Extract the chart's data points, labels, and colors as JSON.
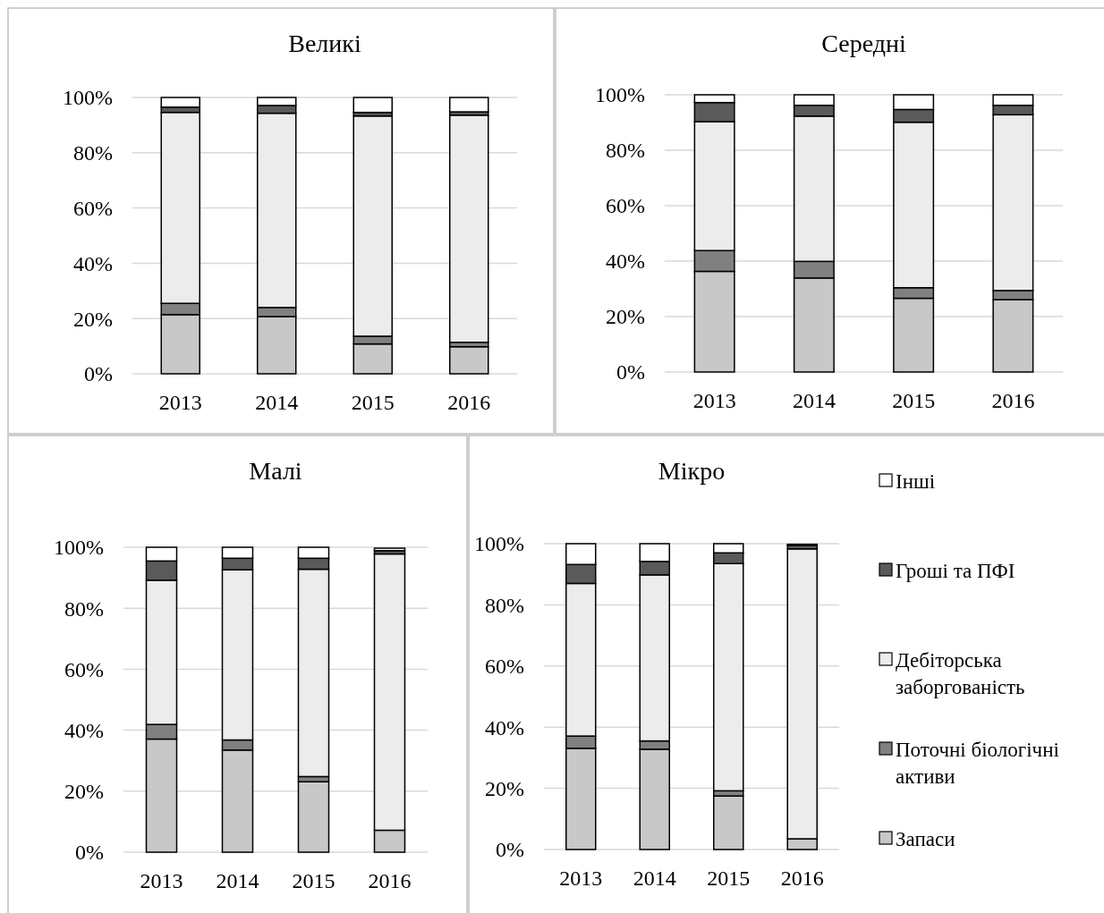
{
  "chart_data": [
    {
      "type": "bar",
      "title": "Великі",
      "categories": [
        "2013",
        "2014",
        "2015",
        "2016"
      ],
      "stacked": true,
      "ylim": [
        0,
        100
      ],
      "yticks": [
        {
          "value": 0,
          "label": "0%"
        },
        {
          "value": 20,
          "label": "20%"
        },
        {
          "value": 40,
          "label": "40%"
        },
        {
          "value": 60,
          "label": "60%"
        },
        {
          "value": 80,
          "label": "80%"
        },
        {
          "value": 100,
          "label": "100%"
        }
      ],
      "grid": "y",
      "legend": false,
      "series": [
        {
          "color": "#c8c8c8",
          "values": [
            21.4,
            20.7,
            10.8,
            9.8
          ]
        },
        {
          "color": "#808080",
          "values": [
            4.1,
            3.3,
            2.8,
            1.6
          ]
        },
        {
          "color": "#ececec",
          "values": [
            69.1,
            70.3,
            79.7,
            82.2
          ]
        },
        {
          "color": "#5a5a5a",
          "values": [
            1.9,
            2.8,
            1.3,
            1.2
          ]
        },
        {
          "color": "#ffffff",
          "values": [
            3.5,
            2.9,
            5.4,
            5.2
          ]
        }
      ]
    },
    {
      "type": "bar",
      "title": "Середні",
      "categories": [
        "2013",
        "2014",
        "2015",
        "2016"
      ],
      "stacked": true,
      "ylim": [
        0,
        100
      ],
      "yticks": [
        {
          "value": 0,
          "label": "0%"
        },
        {
          "value": 20,
          "label": "20%"
        },
        {
          "value": 40,
          "label": "40%"
        },
        {
          "value": 60,
          "label": "60%"
        },
        {
          "value": 80,
          "label": "80%"
        },
        {
          "value": 100,
          "label": "100%"
        }
      ],
      "grid": "y",
      "legend": false,
      "series": [
        {
          "color": "#c8c8c8",
          "values": [
            36.3,
            33.9,
            26.6,
            26.1
          ]
        },
        {
          "color": "#808080",
          "values": [
            7.5,
            6.0,
            3.8,
            3.3
          ]
        },
        {
          "color": "#ececec",
          "values": [
            46.5,
            52.4,
            59.7,
            63.4
          ]
        },
        {
          "color": "#5a5a5a",
          "values": [
            6.9,
            3.9,
            4.6,
            3.4
          ]
        },
        {
          "color": "#ffffff",
          "values": [
            2.8,
            3.8,
            5.3,
            3.8
          ]
        }
      ]
    },
    {
      "type": "bar",
      "title": "Малі",
      "categories": [
        "2013",
        "2014",
        "2015",
        "2016"
      ],
      "stacked": true,
      "ylim": [
        0,
        100
      ],
      "yticks": [
        {
          "value": 0,
          "label": "0%"
        },
        {
          "value": 20,
          "label": "20%"
        },
        {
          "value": 40,
          "label": "40%"
        },
        {
          "value": 60,
          "label": "60%"
        },
        {
          "value": 80,
          "label": "80%"
        },
        {
          "value": 100,
          "label": "100%"
        }
      ],
      "grid": "y",
      "legend": false,
      "series": [
        {
          "color": "#c8c8c8",
          "values": [
            37.1,
            33.5,
            23.1,
            7.2
          ]
        },
        {
          "color": "#808080",
          "values": [
            4.8,
            3.3,
            1.7,
            null
          ]
        },
        {
          "color": "#ececec",
          "values": [
            47.3,
            55.8,
            68.0,
            90.6
          ]
        },
        {
          "color": "#5a5a5a",
          "values": [
            6.3,
            3.8,
            3.6,
            1.1
          ]
        },
        {
          "color": "#ffffff",
          "values": [
            4.5,
            3.6,
            3.6,
            0.8
          ]
        }
      ]
    },
    {
      "type": "bar",
      "title": "Мікро",
      "categories": [
        "2013",
        "2014",
        "2015",
        "2016"
      ],
      "stacked": true,
      "ylim": [
        0,
        100
      ],
      "yticks": [
        {
          "value": 0,
          "label": "0%"
        },
        {
          "value": 20,
          "label": "20%"
        },
        {
          "value": 40,
          "label": "40%"
        },
        {
          "value": 60,
          "label": "60%"
        },
        {
          "value": 80,
          "label": "80%"
        },
        {
          "value": 100,
          "label": "100%"
        }
      ],
      "grid": "y",
      "legend": "right",
      "series": [
        {
          "name": "Запаси",
          "color": "#c8c8c8",
          "values": [
            33.1,
            32.8,
            17.5,
            3.5
          ]
        },
        {
          "name": "Поточні біологічні активи",
          "color": "#808080",
          "values": [
            4.0,
            2.7,
            1.7,
            null
          ]
        },
        {
          "name": "Дебіторська заборгованість",
          "color": "#ececec",
          "values": [
            49.9,
            54.3,
            74.3,
            94.8
          ]
        },
        {
          "name": "Гроші та ПФІ",
          "color": "#5a5a5a",
          "values": [
            6.2,
            4.4,
            3.5,
            1.2
          ]
        },
        {
          "name": "Інші",
          "color": "#ffffff",
          "values": [
            6.8,
            5.8,
            3.0,
            0.3
          ]
        }
      ]
    }
  ]
}
